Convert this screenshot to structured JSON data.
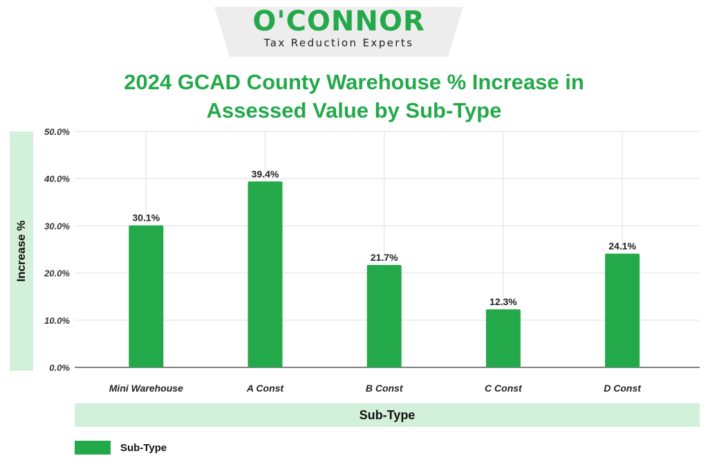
{
  "logo": {
    "name": "O'CONNOR",
    "tagline": "Tax Reduction Experts"
  },
  "colors": {
    "brand_green": "#23a94a",
    "label_band": "#d3f0da",
    "grid": "#dddddd",
    "axis": "#555555",
    "text_dark": "#111111"
  },
  "chart_data": {
    "type": "bar",
    "title_line1": "2024 GCAD County Warehouse % Increase in",
    "title_line2": "Assessed Value by Sub-Type",
    "xlabel": "Sub-Type",
    "ylabel": "Increase %",
    "categories": [
      "Mini Warehouse",
      "A Const",
      "B Const",
      "C Const",
      "D Const"
    ],
    "series": [
      {
        "name": "Sub-Type",
        "values": [
          30.1,
          39.4,
          21.7,
          12.3,
          24.1
        ],
        "value_labels": [
          "30.1%",
          "39.4%",
          "21.7%",
          "12.3%",
          "24.1%"
        ],
        "color": "#23a94a"
      }
    ],
    "ylim": [
      0,
      50
    ],
    "yticks": [
      0,
      10,
      20,
      30,
      40,
      50
    ],
    "ytick_labels": [
      "0.0%",
      "10.0%",
      "20.0%",
      "30.0%",
      "40.0%",
      "50.0%"
    ],
    "grid": true,
    "legend_position": "bottom-left"
  }
}
